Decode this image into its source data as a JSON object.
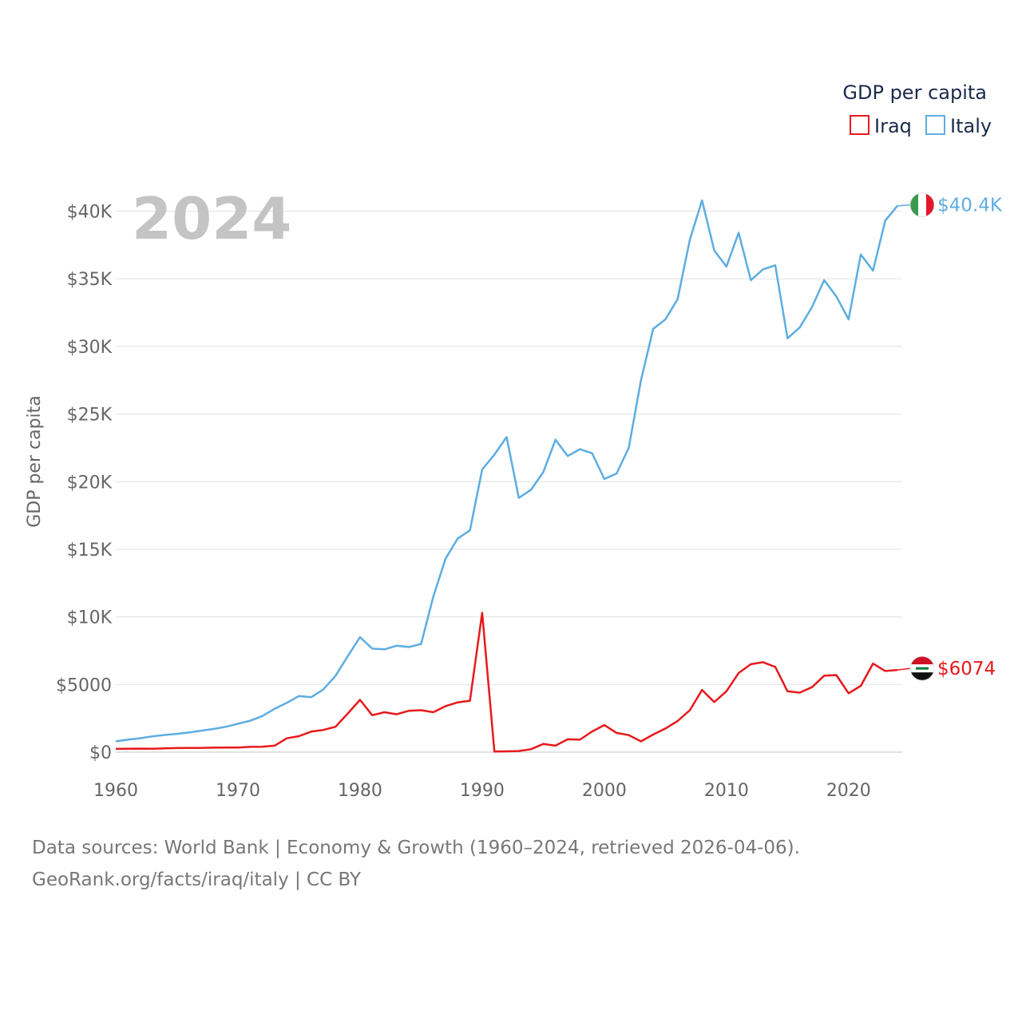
{
  "chart_data": {
    "type": "line",
    "title": "",
    "year_label": "2024",
    "ylabel": "GDP per capita",
    "xlabel": "",
    "xlim": [
      1960,
      2024
    ],
    "ylim": [
      0,
      42000
    ],
    "x_ticks": [
      1960,
      1970,
      1980,
      1990,
      2000,
      2010,
      2020
    ],
    "x_tick_labels": [
      "1960",
      "1970",
      "1980",
      "1990",
      "2000",
      "2010",
      "2020"
    ],
    "y_ticks": [
      0,
      5000,
      10000,
      15000,
      20000,
      25000,
      30000,
      35000,
      40000
    ],
    "y_tick_labels": [
      "$0",
      "$5000",
      "$10K",
      "$15K",
      "$20K",
      "$25K",
      "$30K",
      "$35K",
      "$40K"
    ],
    "legend_title": "GDP per capita",
    "legend_position": "top-right",
    "x": [
      1960,
      1961,
      1962,
      1963,
      1964,
      1965,
      1966,
      1967,
      1968,
      1969,
      1970,
      1971,
      1972,
      1973,
      1974,
      1975,
      1976,
      1977,
      1978,
      1979,
      1980,
      1981,
      1982,
      1983,
      1984,
      1985,
      1986,
      1987,
      1988,
      1989,
      1990,
      1991,
      1992,
      1993,
      1994,
      1995,
      1996,
      1997,
      1998,
      1999,
      2000,
      2001,
      2002,
      2003,
      2004,
      2005,
      2006,
      2007,
      2008,
      2009,
      2010,
      2011,
      2012,
      2013,
      2014,
      2015,
      2016,
      2017,
      2018,
      2019,
      2020,
      2021,
      2022,
      2023,
      2024
    ],
    "series": [
      {
        "name": "Iraq",
        "color": "#e8191c",
        "end_label": "$6074",
        "flag": "iraq-flag",
        "values": [
          240,
          250,
          260,
          250,
          280,
          300,
          310,
          310,
          330,
          340,
          340,
          390,
          400,
          480,
          1020,
          1180,
          1520,
          1640,
          1880,
          2860,
          3870,
          2730,
          2950,
          2800,
          3060,
          3100,
          2950,
          3400,
          3680,
          3800,
          10300,
          50,
          60,
          80,
          220,
          600,
          480,
          950,
          920,
          1530,
          2000,
          1420,
          1260,
          800,
          1300,
          1750,
          2300,
          3100,
          4600,
          3700,
          4500,
          5850,
          6500,
          6650,
          6300,
          4500,
          4400,
          4800,
          5650,
          5700,
          4350,
          4900,
          6550,
          6000,
          6074
        ]
      },
      {
        "name": "Italy",
        "color": "#5dade2",
        "end_label": "$40.4K",
        "flag": "italy-flag",
        "values": [
          800,
          920,
          1030,
          1170,
          1270,
          1350,
          1450,
          1590,
          1710,
          1870,
          2100,
          2320,
          2670,
          3200,
          3640,
          4150,
          4060,
          4640,
          5650,
          7100,
          8500,
          7650,
          7600,
          7870,
          7770,
          8000,
          11500,
          14300,
          15800,
          16400,
          20900,
          22000,
          23300,
          18800,
          19400,
          20700,
          23100,
          21900,
          22400,
          22100,
          20200,
          20600,
          22500,
          27500,
          31300,
          32000,
          33500,
          37900,
          40800,
          37100,
          35900,
          38400,
          34900,
          35700,
          36000,
          30600,
          31400,
          32900,
          34900,
          33700,
          32000,
          36800,
          35600,
          39300,
          40400
        ]
      }
    ]
  },
  "footer": {
    "line1": "Data sources: World Bank | Economy & Growth (1960–2024, retrieved 2026-04-06).",
    "line2": "GeoRank.org/facts/iraq/italy | CC BY"
  },
  "colors": {
    "grid": "#e6e6e6",
    "text": "#666666",
    "year_label": "#c4c4c4",
    "legend_text": "#1a2b4a"
  }
}
